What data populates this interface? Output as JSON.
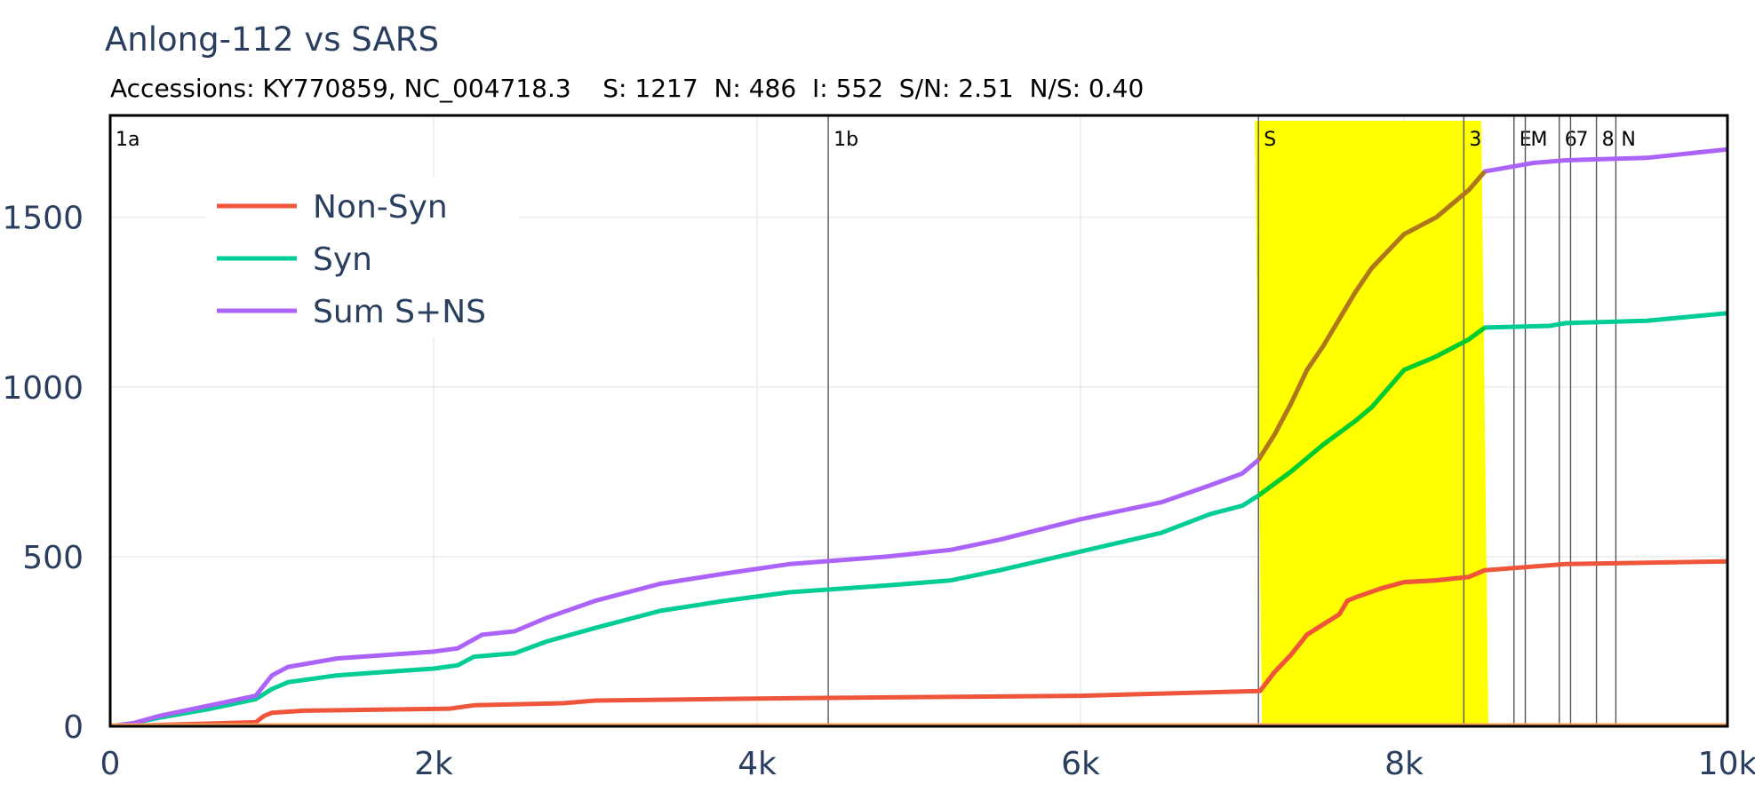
{
  "chart_data": {
    "type": "line",
    "title": "Anlong-112 vs SARS",
    "subtitle": "Accessions: KY770859, NC_004718.3    S: 1217  N: 486  I: 552  S/N: 2.51  N/S: 0.40",
    "xlabel": "",
    "ylabel": "",
    "xlim": [
      0,
      10000
    ],
    "ylim": [
      0,
      1800
    ],
    "x_ticks": [
      0,
      2000,
      4000,
      6000,
      8000,
      10000
    ],
    "x_tick_labels": [
      "0",
      "2k",
      "4k",
      "6k",
      "8k",
      "10k"
    ],
    "y_ticks": [
      0,
      500,
      1000,
      1500
    ],
    "y_tick_labels": [
      "0",
      "500",
      "1000",
      "1500"
    ],
    "grid": true,
    "legend_position": "top-left",
    "highlight": {
      "label": "S",
      "x_start": 7100,
      "x_end": 8500,
      "color": "#ffff00"
    },
    "regions": [
      {
        "label": "1a",
        "x": 0
      },
      {
        "label": "1b",
        "x": 4440
      },
      {
        "label": "S",
        "x": 7100
      },
      {
        "label": "3",
        "x": 8370
      },
      {
        "label": "E",
        "x": 8680
      },
      {
        "label": "M",
        "x": 8750
      },
      {
        "label": "6",
        "x": 8960
      },
      {
        "label": "7",
        "x": 9030
      },
      {
        "label": "8",
        "x": 9190
      },
      {
        "label": "N",
        "x": 9310
      }
    ],
    "series": [
      {
        "name": "Non-Syn",
        "color": "#ef553b",
        "points": [
          [
            0,
            0
          ],
          [
            900,
            12
          ],
          [
            950,
            30
          ],
          [
            1000,
            40
          ],
          [
            1200,
            46
          ],
          [
            2100,
            52
          ],
          [
            2250,
            62
          ],
          [
            2800,
            68
          ],
          [
            3000,
            76
          ],
          [
            4000,
            82
          ],
          [
            6000,
            90
          ],
          [
            7110,
            104
          ],
          [
            7200,
            160
          ],
          [
            7300,
            210
          ],
          [
            7400,
            270
          ],
          [
            7600,
            330
          ],
          [
            7650,
            370
          ],
          [
            7700,
            380
          ],
          [
            7850,
            405
          ],
          [
            8000,
            425
          ],
          [
            8200,
            430
          ],
          [
            8400,
            440
          ],
          [
            8500,
            460
          ],
          [
            9000,
            478
          ],
          [
            10000,
            486
          ]
        ]
      },
      {
        "name": "Syn",
        "color": "#00cc96",
        "points": [
          [
            0,
            0
          ],
          [
            150,
            10
          ],
          [
            300,
            25
          ],
          [
            600,
            50
          ],
          [
            900,
            80
          ],
          [
            1000,
            110
          ],
          [
            1100,
            130
          ],
          [
            1400,
            150
          ],
          [
            1700,
            160
          ],
          [
            2000,
            170
          ],
          [
            2150,
            180
          ],
          [
            2250,
            205
          ],
          [
            2500,
            215
          ],
          [
            2700,
            250
          ],
          [
            3000,
            290
          ],
          [
            3400,
            340
          ],
          [
            3800,
            370
          ],
          [
            4200,
            395
          ],
          [
            4800,
            415
          ],
          [
            5200,
            430
          ],
          [
            5500,
            460
          ],
          [
            6000,
            515
          ],
          [
            6500,
            570
          ],
          [
            6800,
            625
          ],
          [
            7000,
            650
          ],
          [
            7100,
            680
          ],
          [
            7300,
            750
          ],
          [
            7500,
            830
          ],
          [
            7700,
            900
          ],
          [
            7800,
            940
          ],
          [
            8000,
            1050
          ],
          [
            8200,
            1090
          ],
          [
            8400,
            1140
          ],
          [
            8500,
            1175
          ],
          [
            8900,
            1180
          ],
          [
            9000,
            1188
          ],
          [
            9500,
            1195
          ],
          [
            10000,
            1217
          ]
        ]
      },
      {
        "name": "Sum S+NS",
        "color": "#ab63fa",
        "points": [
          [
            0,
            0
          ],
          [
            150,
            10
          ],
          [
            300,
            30
          ],
          [
            600,
            60
          ],
          [
            900,
            90
          ],
          [
            1000,
            150
          ],
          [
            1100,
            175
          ],
          [
            1400,
            200
          ],
          [
            1700,
            210
          ],
          [
            2000,
            220
          ],
          [
            2150,
            230
          ],
          [
            2300,
            270
          ],
          [
            2500,
            280
          ],
          [
            2700,
            320
          ],
          [
            3000,
            370
          ],
          [
            3400,
            420
          ],
          [
            3800,
            450
          ],
          [
            4200,
            478
          ],
          [
            4800,
            500
          ],
          [
            5200,
            520
          ],
          [
            5500,
            550
          ],
          [
            6000,
            610
          ],
          [
            6500,
            660
          ],
          [
            6800,
            710
          ],
          [
            7000,
            745
          ],
          [
            7100,
            785
          ],
          [
            7200,
            860
          ],
          [
            7300,
            950
          ],
          [
            7400,
            1050
          ],
          [
            7500,
            1120
          ],
          [
            7600,
            1200
          ],
          [
            7700,
            1280
          ],
          [
            7800,
            1350
          ],
          [
            7900,
            1400
          ],
          [
            8000,
            1450
          ],
          [
            8200,
            1500
          ],
          [
            8400,
            1580
          ],
          [
            8500,
            1635
          ],
          [
            8800,
            1660
          ],
          [
            9000,
            1668
          ],
          [
            9500,
            1675
          ],
          [
            10000,
            1700
          ]
        ]
      }
    ]
  }
}
